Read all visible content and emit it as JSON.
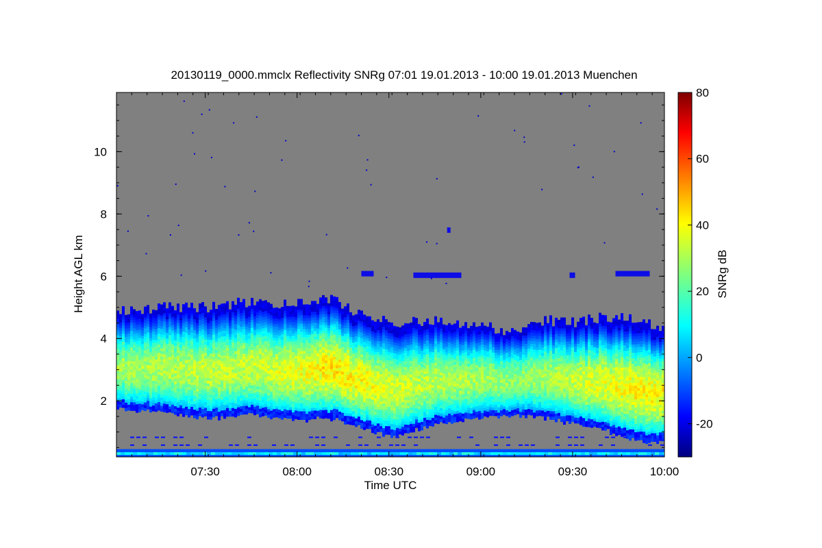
{
  "chart_data": {
    "type": "heatmap",
    "title": "20130119_0000.mmclx Reflectivity SNRg   07:01 19.01.2013 - 10:00 19.01.2013 Muenchen",
    "xlabel": "Time UTC",
    "ylabel": "Height AGL km",
    "xlim": [
      "07:01",
      "10:00"
    ],
    "ylim": [
      0.2,
      11.9
    ],
    "x_ticks": [
      "07:30",
      "08:00",
      "08:30",
      "09:00",
      "09:30",
      "10:00"
    ],
    "y_ticks": [
      2,
      4,
      6,
      8,
      10
    ],
    "no_data_color": "#808080",
    "colorbar": {
      "label": "SNRg dB",
      "range": [
        -30,
        80
      ],
      "ticks": [
        -20,
        0,
        20,
        40,
        60,
        80
      ],
      "colormap": "jet"
    },
    "cloud_layer": {
      "description_values": "SNRg along time",
      "times": [
        "07:01",
        "07:15",
        "07:30",
        "07:45",
        "08:00",
        "08:10",
        "08:20",
        "08:30",
        "08:45",
        "09:00",
        "09:10",
        "09:20",
        "09:30",
        "09:40",
        "09:50",
        "10:00"
      ],
      "cloud_top_km": [
        4.9,
        5.0,
        5.0,
        5.2,
        5.1,
        5.3,
        4.8,
        4.5,
        4.6,
        4.4,
        4.2,
        4.6,
        4.5,
        4.7,
        4.6,
        4.3
      ],
      "cloud_base_km": [
        1.8,
        1.7,
        1.5,
        1.6,
        1.4,
        1.5,
        1.2,
        0.9,
        1.3,
        1.5,
        1.6,
        1.5,
        1.3,
        1.1,
        0.8,
        0.7
      ],
      "max_snr_db": [
        30,
        32,
        33,
        34,
        38,
        42,
        40,
        36,
        32,
        30,
        28,
        30,
        34,
        38,
        40,
        40
      ]
    },
    "upper_patches_km": [
      6.0,
      7.5,
      6.0
    ]
  }
}
